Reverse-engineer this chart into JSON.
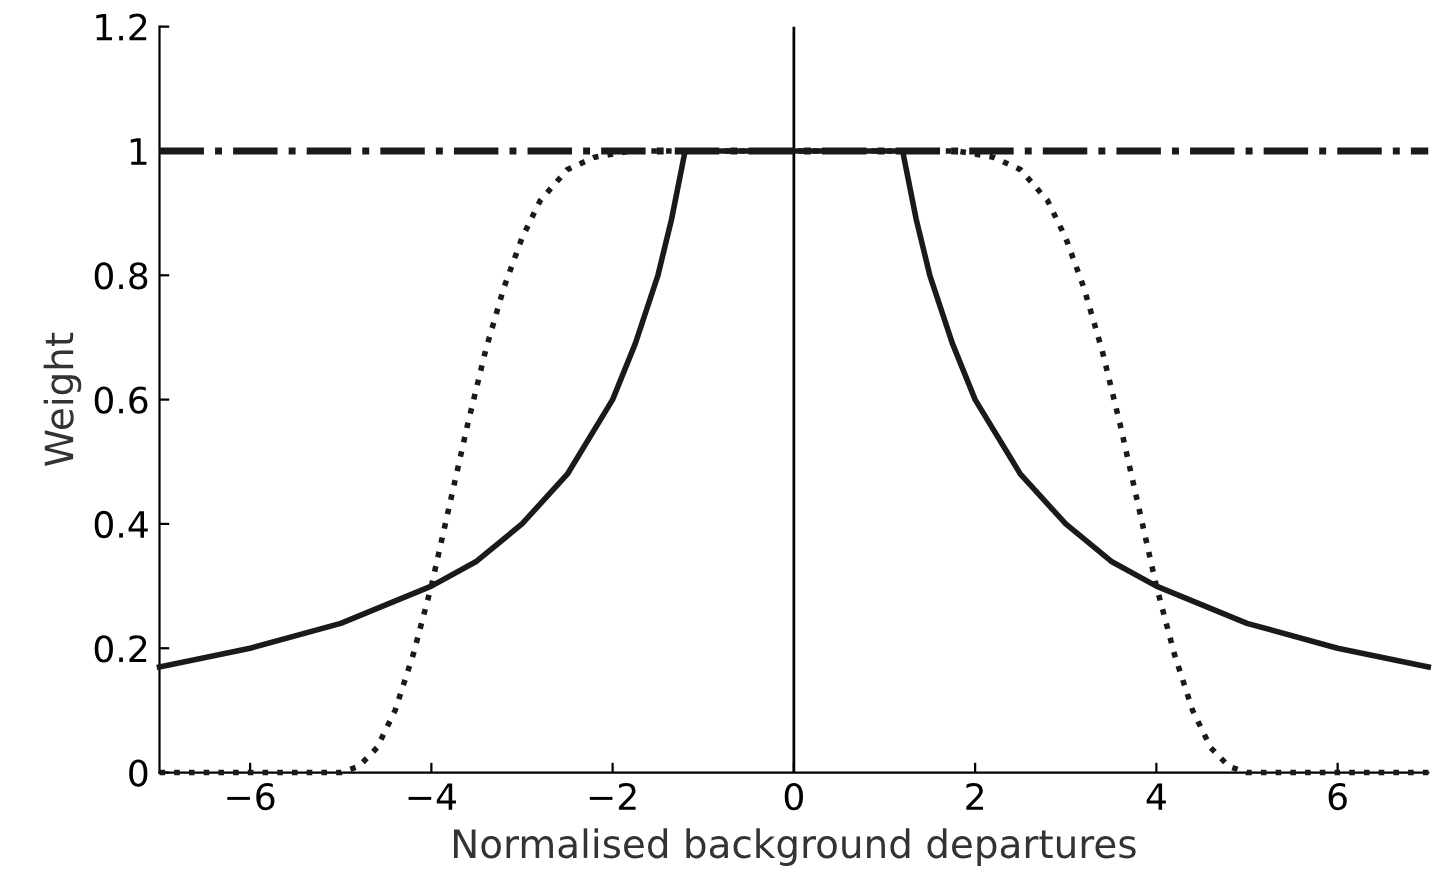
{
  "chart_data": {
    "type": "line",
    "xlabel": "Normalised background departures",
    "ylabel": "Weight",
    "xlim": [
      -7,
      7
    ],
    "ylim": [
      0,
      1.2
    ],
    "xticks": [
      {
        "value": -6,
        "label": "−6"
      },
      {
        "value": -4,
        "label": "−4"
      },
      {
        "value": -2,
        "label": "−2"
      },
      0,
      2,
      4,
      6
    ],
    "yticks": [
      0,
      0.2,
      0.4,
      0.6,
      0.8,
      1,
      1.2
    ],
    "grid": false,
    "marker": "none",
    "ref_lines": [
      {
        "axis": "x",
        "value": 0,
        "color": "#000000",
        "line_style": "solid"
      }
    ],
    "series": [
      {
        "color": "#1a1a1a",
        "line_style": "dashdot",
        "x": [
          -7,
          7
        ],
        "values": [
          1,
          1
        ]
      },
      {
        "color": "#1a1a1a",
        "line_style": "solid",
        "x": [
          -7,
          -6,
          -5,
          -4,
          -3.5,
          -3,
          -2.5,
          -2,
          -1.75,
          -1.5,
          -1.35,
          -1.2,
          1.2,
          1.35,
          1.5,
          1.75,
          2,
          2.5,
          3,
          3.5,
          4,
          5,
          6,
          7
        ],
        "values": [
          0.17,
          0.2,
          0.24,
          0.3,
          0.34,
          0.4,
          0.48,
          0.6,
          0.69,
          0.8,
          0.89,
          1,
          1,
          0.89,
          0.8,
          0.69,
          0.6,
          0.48,
          0.4,
          0.34,
          0.3,
          0.24,
          0.2,
          0.17
        ]
      },
      {
        "color": "#1a1a1a",
        "line_style": "dotted",
        "x": [
          -7,
          -5,
          -4.8,
          -4.6,
          -4.4,
          -4.2,
          -4,
          -3.8,
          -3.6,
          -3.4,
          -3.2,
          -3,
          -2.8,
          -2.5,
          -2.2,
          -1.8,
          -1.5,
          1.5,
          1.8,
          2.2,
          2.5,
          2.8,
          3,
          3.2,
          3.4,
          3.6,
          3.8,
          4,
          4.2,
          4.4,
          4.6,
          4.8,
          5,
          7
        ],
        "values": [
          0,
          0,
          0.01,
          0.04,
          0.1,
          0.19,
          0.3,
          0.43,
          0.56,
          0.68,
          0.78,
          0.86,
          0.92,
          0.97,
          0.99,
          1,
          1,
          1,
          1,
          0.99,
          0.97,
          0.92,
          0.86,
          0.78,
          0.68,
          0.56,
          0.43,
          0.3,
          0.19,
          0.1,
          0.04,
          0.01,
          0,
          0
        ]
      }
    ]
  }
}
